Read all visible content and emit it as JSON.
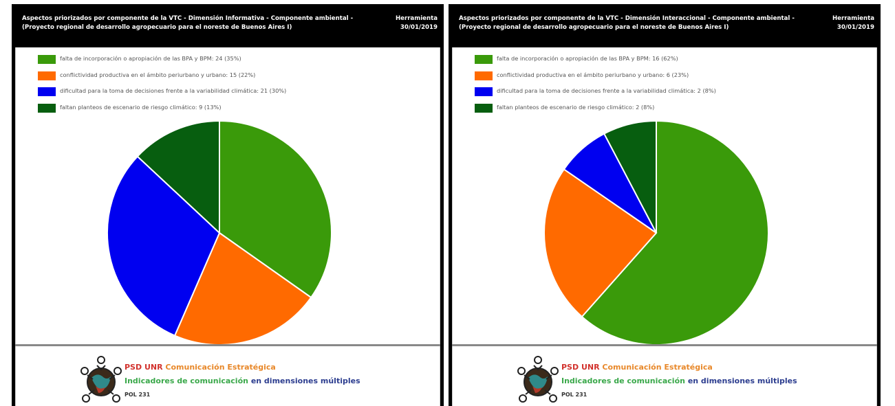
{
  "panels": [
    {
      "header": {
        "title": "Aspectos priorizados por componente de la VTC - Dimensión Informativa - Componente ambiental - (Proyecto regional de desarrollo agropecuario para el noreste de Buenos Aires I)",
        "tool_label": "Herramienta",
        "date": "30/01/2019"
      },
      "legend": [
        {
          "label": "falta de incorporación o apropiación de las BPA y BPM: 24 (35%)"
        },
        {
          "label": "conflictividad productiva en el ámbito periurbano y urbano: 15 (22%)"
        },
        {
          "label": "dificultad para la toma de decisiones frente a la variabilidad climática: 21 (30%)"
        },
        {
          "label": "faltan planteos de escenario de riesgo climático: 9 (13%)"
        }
      ]
    },
    {
      "header": {
        "title": "Aspectos priorizados por componente de la VTC - Dimensión Interaccional - Componente ambiental -(Proyecto regional de desarrollo agropecuario para el noreste de Buenos Aires I)",
        "tool_label": "Herramienta",
        "date": "30/01/2019"
      },
      "legend": [
        {
          "label": "falta de incorporación o apropiación de las BPA y BPM: 16 (62%)"
        },
        {
          "label": "conflictividad productiva en el ámbito periurbano y urbano: 6 (23%)"
        },
        {
          "label": "dificultad para la toma de decisiones frente a la variabilidad climática: 2 (8%)"
        },
        {
          "label": "faltan planteos de escenario de riesgo climático: 2 (8%)"
        }
      ]
    }
  ],
  "footer": {
    "line1_a": "PSD UNR",
    "line1_b": "Comunicación Estratégica",
    "line2_a": "Indicadores de comunicación",
    "line2_b": "en dimensiones múltiples",
    "line3": "POL 231"
  },
  "colors": {
    "green": "#3a9a0a",
    "orange": "#ff6a00",
    "blue": "#0000f0",
    "dark_green": "#075e0f"
  },
  "chart_data": [
    {
      "type": "pie",
      "title": "Aspectos priorizados por componente de la VTC - Dimensión Informativa - Componente ambiental - (Proyecto regional de desarrollo agropecuario para el noreste de Buenos Aires I)",
      "categories": [
        "falta de incorporación o apropiación de las BPA y BPM",
        "conflictividad productiva en el ámbito periurbano y urbano",
        "dificultad para la toma de decisiones frente a la variabilidad climática",
        "faltan planteos de escenario de riesgo climático"
      ],
      "values": [
        24,
        15,
        21,
        9
      ],
      "percentages": [
        35,
        22,
        30,
        13
      ],
      "colors": [
        "#3a9a0a",
        "#ff6a00",
        "#0000f0",
        "#075e0f"
      ],
      "legend_position": "top-left"
    },
    {
      "type": "pie",
      "title": "Aspectos priorizados por componente de la VTC - Dimensión Interaccional - Componente ambiental -(Proyecto regional de desarrollo agropecuario para el noreste de Buenos Aires I)",
      "categories": [
        "falta de incorporación o apropiación de las BPA y BPM",
        "conflictividad productiva en el ámbito periurbano y urbano",
        "dificultad para la toma de decisiones frente a la variabilidad climática",
        "faltan planteos de escenario de riesgo climático"
      ],
      "values": [
        16,
        6,
        2,
        2
      ],
      "percentages": [
        62,
        23,
        8,
        8
      ],
      "colors": [
        "#3a9a0a",
        "#ff6a00",
        "#0000f0",
        "#075e0f"
      ],
      "legend_position": "top-left"
    }
  ]
}
